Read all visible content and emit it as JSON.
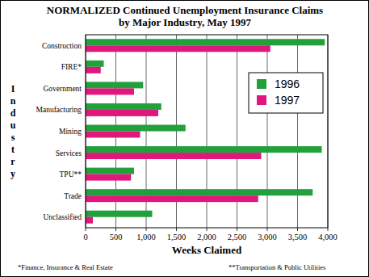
{
  "chart_data": {
    "type": "bar",
    "orientation": "horizontal",
    "title": "NORMALIZED Continued Unemployment Insurance Claims",
    "subtitle": "by Major Industry, May 1997",
    "x_label": "Weeks Claimed",
    "y_label": "Industry",
    "categories": [
      "Construction",
      "FIRE*",
      "Government",
      "Manufacturing",
      "Mining",
      "Services",
      "TPU**",
      "Trade",
      "Unclassified"
    ],
    "series": [
      {
        "name": "1996",
        "color": "#22a03c",
        "values": [
          3950,
          300,
          950,
          1250,
          1650,
          3900,
          800,
          3750,
          1100
        ]
      },
      {
        "name": "1997",
        "color": "#e0187c",
        "values": [
          3050,
          250,
          800,
          1200,
          900,
          2900,
          750,
          2850,
          120
        ]
      }
    ],
    "xlim": [
      0,
      4000
    ],
    "xticks": [
      0,
      500,
      {
        "value": 1000,
        "label": "1,000"
      },
      {
        "value": 1500,
        "label": "1,500"
      },
      {
        "value": 2000,
        "label": "2,000"
      },
      {
        "value": 2500,
        "label": "2,500"
      },
      {
        "value": 3000,
        "label": "3,000"
      },
      {
        "value": 3500,
        "label": "3,500"
      },
      {
        "value": 4000,
        "label": "4,000"
      }
    ],
    "grid": true,
    "legend": "right",
    "annotations": [
      "*Finance, Insurance & Real Estate",
      "**Transportation & Public Utilities"
    ]
  }
}
